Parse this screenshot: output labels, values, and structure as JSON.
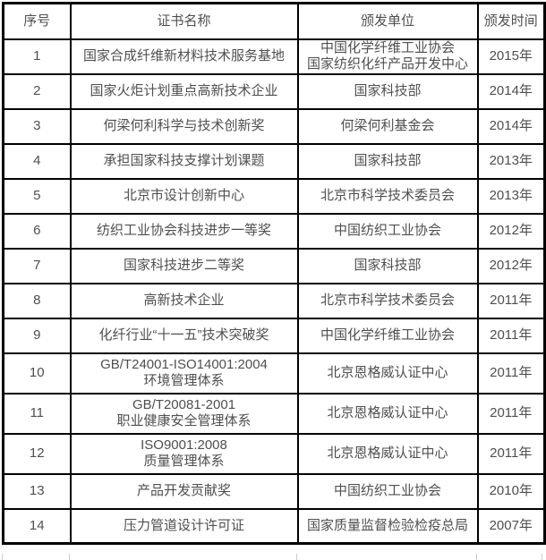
{
  "table": {
    "headers": [
      "序号",
      "证书名称",
      "颁发单位",
      "颁发时间"
    ],
    "rows": [
      {
        "no": "1",
        "name": [
          "国家合成纤维新材料技术服务基地"
        ],
        "unit": [
          "中国化学纤维工业协会",
          "国家纺织化纤产品开发中心"
        ],
        "year": "2015年"
      },
      {
        "no": "2",
        "name": [
          "国家火炬计划重点高新技术企业"
        ],
        "unit": [
          "国家科技部"
        ],
        "year": "2014年"
      },
      {
        "no": "3",
        "name": [
          "何梁何利科学与技术创新奖"
        ],
        "unit": [
          "何梁何利基金会"
        ],
        "year": "2014年"
      },
      {
        "no": "4",
        "name": [
          "承担国家科技支撑计划课题"
        ],
        "unit": [
          "国家科技部"
        ],
        "year": "2013年"
      },
      {
        "no": "5",
        "name": [
          "北京市设计创新中心"
        ],
        "unit": [
          "北京市科学技术委员会"
        ],
        "year": "2013年"
      },
      {
        "no": "6",
        "name": [
          "纺织工业协会科技进步一等奖"
        ],
        "unit": [
          "中国纺织工业协会"
        ],
        "year": "2012年"
      },
      {
        "no": "7",
        "name": [
          "国家科技进步二等奖"
        ],
        "unit": [
          "国家科技部"
        ],
        "year": "2012年"
      },
      {
        "no": "8",
        "name": [
          "高新技术企业"
        ],
        "unit": [
          "北京市科学技术委员会"
        ],
        "year": "2011年"
      },
      {
        "no": "9",
        "name": [
          "化纤行业“十一五”技术突破奖"
        ],
        "unit": [
          "中国化学纤维工业协会"
        ],
        "year": "2011年"
      },
      {
        "no": "10",
        "name": [
          "GB/T24001-ISO14001:2004",
          "环境管理体系"
        ],
        "unit": [
          "北京恩格威认证中心"
        ],
        "year": "2011年"
      },
      {
        "no": "11",
        "name": [
          "GB/T20081-2001",
          "职业健康安全管理体系"
        ],
        "unit": [
          "北京恩格威认证中心"
        ],
        "year": "2011年"
      },
      {
        "no": "12",
        "name": [
          "ISO9001:2008",
          "质量管理体系"
        ],
        "unit": [
          "北京恩格威认证中心"
        ],
        "year": "2011年"
      },
      {
        "no": "13",
        "name": [
          "产品开发贡献奖"
        ],
        "unit": [
          "中国纺织工业协会"
        ],
        "year": "2010年"
      },
      {
        "no": "14",
        "name": [
          "压力管道设计许可证"
        ],
        "unit": [
          "国家质量监督检验检疫总局"
        ],
        "year": "2007年"
      }
    ]
  },
  "colors": {
    "border": "#000000",
    "text": "#4f4f4f",
    "background": "#ffffff",
    "grid_stub": "#c7cfc7"
  }
}
